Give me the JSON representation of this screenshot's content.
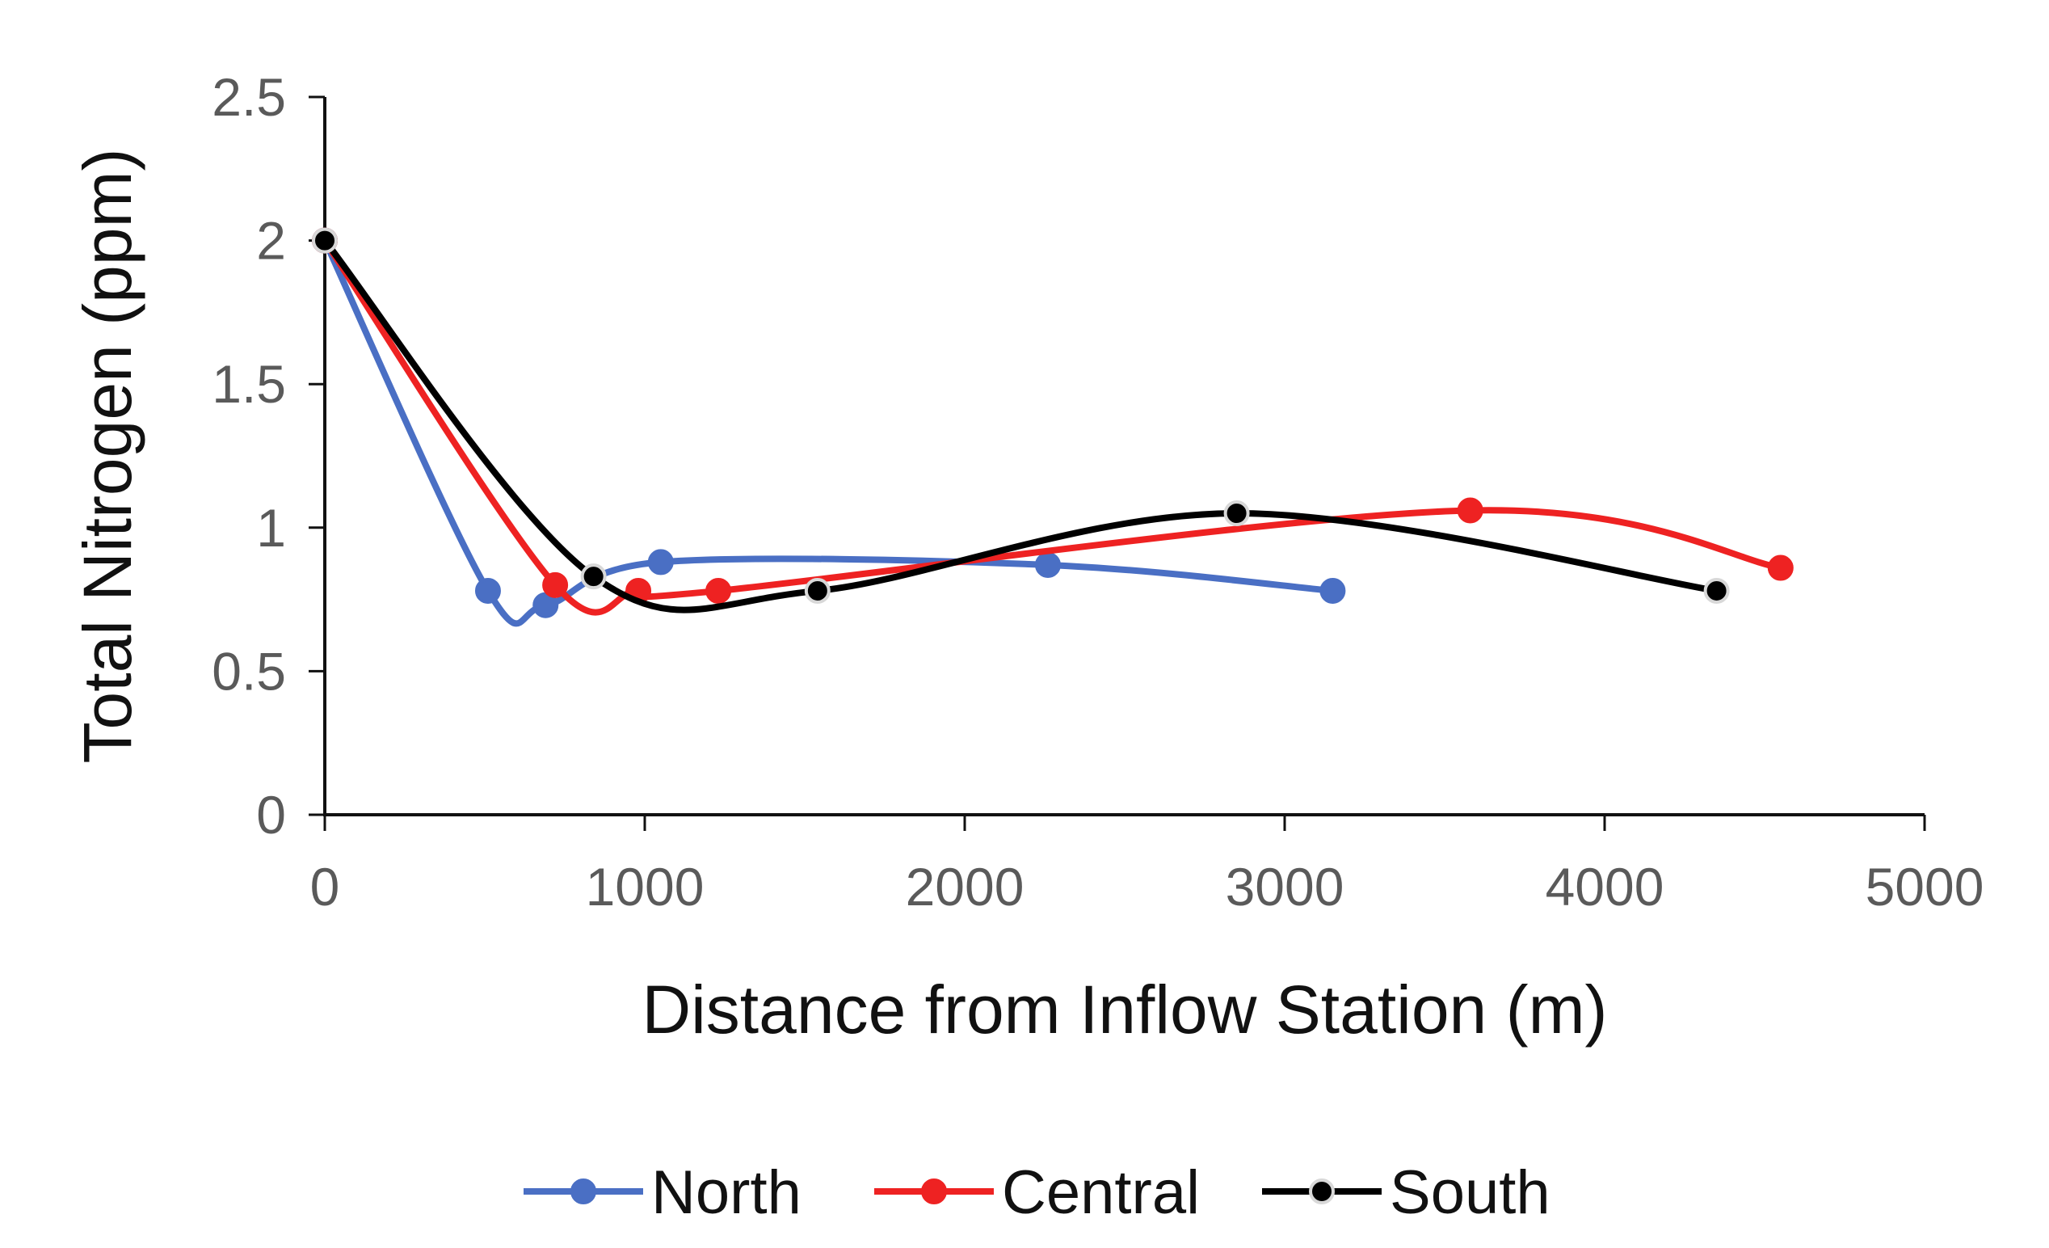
{
  "chart_data": {
    "type": "line",
    "title": "",
    "xlabel": "Distance from Inflow Station (m)",
    "ylabel": "Total Nitrogen (ppm)",
    "xlim": [
      0,
      5000
    ],
    "ylim": [
      0,
      2.5
    ],
    "x_ticks": [
      0,
      1000,
      2000,
      3000,
      4000,
      5000
    ],
    "x_tick_labels": [
      "0",
      "1000",
      "2000",
      "3000",
      "4000",
      "5000"
    ],
    "y_ticks": [
      0,
      0.5,
      1,
      1.5,
      2,
      2.5
    ],
    "y_tick_labels": [
      "0",
      "0.5",
      "1",
      "1.5",
      "2",
      "2.5"
    ],
    "grid": false,
    "smooth": true,
    "legend": "bottom-center",
    "series": [
      {
        "name": "North",
        "color": "#4a6fc4",
        "marker_fill": "#4a6fc4",
        "marker_stroke": "#4a6fc4",
        "x": [
          0,
          510,
          690,
          1050,
          2260,
          3150
        ],
        "y": [
          2.0,
          0.78,
          0.73,
          0.88,
          0.87,
          0.78
        ]
      },
      {
        "name": "Central",
        "color": "#ee2222",
        "marker_fill": "#ee2222",
        "marker_stroke": "#ee2222",
        "x": [
          0,
          720,
          980,
          1230,
          3580,
          4550
        ],
        "y": [
          2.0,
          0.8,
          0.78,
          0.78,
          1.06,
          0.86
        ]
      },
      {
        "name": "South",
        "color": "#000000",
        "marker_fill": "#000000",
        "marker_stroke": "#d8d8d8",
        "x": [
          0,
          840,
          1540,
          2850,
          4350
        ],
        "y": [
          2.0,
          0.83,
          0.78,
          1.05,
          0.78
        ]
      }
    ]
  }
}
